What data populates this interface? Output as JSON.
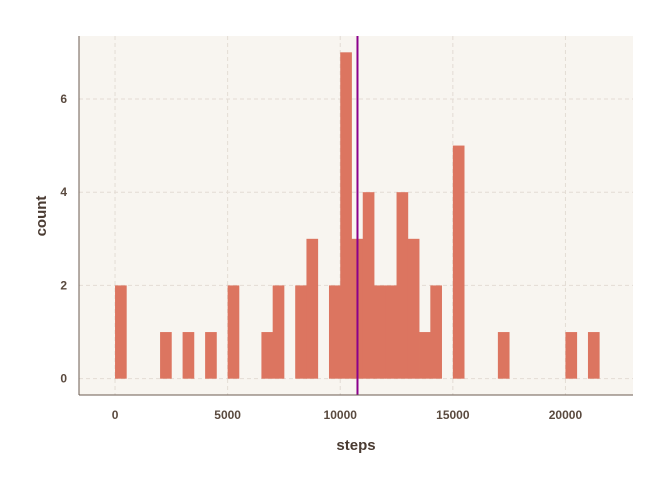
{
  "chart_data": {
    "type": "bar",
    "subtype": "histogram",
    "xlabel": "steps",
    "ylabel": "count",
    "binwidth": 500,
    "x_ticks": [
      0,
      5000,
      10000,
      15000,
      20000
    ],
    "y_ticks": [
      0,
      2,
      4,
      6
    ],
    "xlim": [
      -1600,
      23000
    ],
    "ylim": [
      -0.35,
      7.35
    ],
    "grid": true,
    "bins": [
      {
        "start": 0,
        "end": 500,
        "count": 2
      },
      {
        "start": 2000,
        "end": 2500,
        "count": 1
      },
      {
        "start": 3000,
        "end": 3500,
        "count": 1
      },
      {
        "start": 4000,
        "end": 4500,
        "count": 1
      },
      {
        "start": 5000,
        "end": 5500,
        "count": 2
      },
      {
        "start": 6500,
        "end": 7000,
        "count": 1
      },
      {
        "start": 7000,
        "end": 7500,
        "count": 2
      },
      {
        "start": 8000,
        "end": 8500,
        "count": 2
      },
      {
        "start": 8500,
        "end": 9000,
        "count": 3
      },
      {
        "start": 9500,
        "end": 10000,
        "count": 2
      },
      {
        "start": 10000,
        "end": 10500,
        "count": 7
      },
      {
        "start": 10500,
        "end": 11000,
        "count": 3
      },
      {
        "start": 11000,
        "end": 11500,
        "count": 4
      },
      {
        "start": 11500,
        "end": 12000,
        "count": 2
      },
      {
        "start": 12000,
        "end": 12500,
        "count": 2
      },
      {
        "start": 12500,
        "end": 13000,
        "count": 4
      },
      {
        "start": 13000,
        "end": 13500,
        "count": 3
      },
      {
        "start": 13500,
        "end": 14000,
        "count": 1
      },
      {
        "start": 14000,
        "end": 14500,
        "count": 2
      },
      {
        "start": 15000,
        "end": 15500,
        "count": 5
      },
      {
        "start": 17000,
        "end": 17500,
        "count": 1
      },
      {
        "start": 20000,
        "end": 20500,
        "count": 1
      },
      {
        "start": 21000,
        "end": 21500,
        "count": 1
      }
    ],
    "vline": {
      "x": 10766
    },
    "colors": {
      "panel_background": "#f8f5f0",
      "bar_fill": "#dc7560",
      "vline": "#8b008b",
      "grid": "#e3dcd4",
      "axis_line": "#6b5b50"
    }
  }
}
